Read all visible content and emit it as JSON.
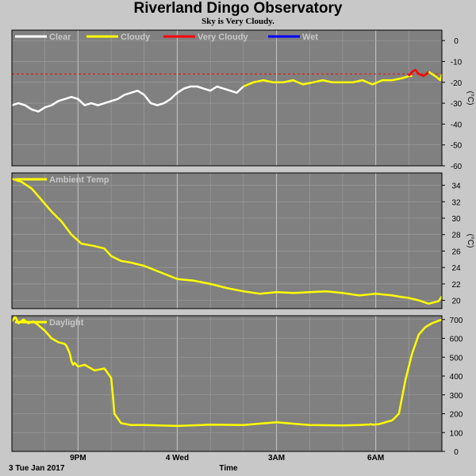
{
  "title": "Riverland Dingo Observatory",
  "subtitle": "Sky is Very Cloudy.",
  "colors": {
    "panel_bg": "#808080",
    "grid": "#a0a0a0",
    "clear": "#ffffff",
    "cloudy": "#ffff00",
    "very_cloudy": "#ff0000",
    "wet": "#0000ff"
  },
  "chart_data": [
    {
      "type": "line",
      "legend": [
        {
          "name": "Clear",
          "color": "#ffffff"
        },
        {
          "name": "Cloudy",
          "color": "#ffff00"
        },
        {
          "name": "Very Cloudy",
          "color": "#ff0000"
        },
        {
          "name": "Wet",
          "color": "#0000ff"
        }
      ],
      "ylabel": "(°C)",
      "ylim": [
        -60,
        5
      ],
      "yticks": [
        0,
        -10,
        -20,
        -30,
        -40,
        -50,
        -60
      ],
      "threshold": -16,
      "xlim": [
        0,
        13
      ],
      "series": [
        {
          "name": "Clear",
          "color": "#ffffff",
          "x": [
            0,
            0.2,
            0.4,
            0.6,
            0.8,
            1.0,
            1.2,
            1.4,
            1.6,
            1.8,
            2.0,
            2.2,
            2.4,
            2.6,
            2.8,
            3.0,
            3.2,
            3.4,
            3.6,
            3.8,
            4.0,
            4.2,
            4.4,
            4.6,
            4.8,
            5.0,
            5.2,
            5.4,
            5.6,
            5.8,
            6.0,
            6.2,
            6.4,
            6.6,
            6.8,
            7.0
          ],
          "values": [
            -31,
            -30,
            -31,
            -33,
            -34,
            -32,
            -31,
            -29,
            -28,
            -27,
            -28,
            -31,
            -30,
            -31,
            -30,
            -29,
            -28,
            -26,
            -25,
            -24,
            -26,
            -30,
            -31,
            -30,
            -28,
            -25,
            -23,
            -22,
            -22,
            -23,
            -24,
            -22,
            -23,
            -24,
            -25,
            -22
          ]
        },
        {
          "name": "Cloudy",
          "color": "#ffff00",
          "x": [
            7.0,
            7.3,
            7.6,
            7.9,
            8.2,
            8.5,
            8.8,
            9.1,
            9.4,
            9.7,
            10.0,
            10.3,
            10.6,
            10.9,
            11.2,
            11.5,
            11.8,
            12.0,
            12.1
          ],
          "values": [
            -22,
            -20,
            -19,
            -20,
            -20,
            -19,
            -21,
            -20,
            -19,
            -20,
            -20,
            -20,
            -19,
            -21,
            -19,
            -19,
            -18,
            -17,
            -17
          ]
        },
        {
          "name": "Very Cloudy",
          "color": "#ff0000",
          "x": [
            12.0,
            12.1,
            12.2,
            12.3,
            12.45,
            12.6
          ],
          "values": [
            -17,
            -15,
            -14,
            -16,
            -17,
            -15
          ]
        },
        {
          "name": "Cloudy",
          "color": "#ffff00",
          "x": [
            12.6,
            12.8,
            12.95,
            13.0
          ],
          "values": [
            -15,
            -17,
            -19,
            -16
          ]
        }
      ]
    },
    {
      "type": "line",
      "legend": [
        {
          "name": "Ambient Temp",
          "color": "#ffff00"
        }
      ],
      "ylabel": "(°C)",
      "ylim": [
        19,
        35.5
      ],
      "yticks": [
        20,
        22,
        24,
        26,
        28,
        30,
        32,
        34
      ],
      "xlim": [
        0,
        13
      ],
      "series": [
        {
          "name": "Ambient Temp",
          "color": "#ffff00",
          "x": [
            0,
            0.3,
            0.6,
            0.9,
            1.2,
            1.5,
            1.8,
            2.1,
            2.5,
            2.8,
            3.0,
            3.3,
            3.6,
            4.0,
            4.5,
            5.0,
            5.5,
            6.0,
            6.5,
            7.0,
            7.5,
            8.0,
            8.5,
            9.0,
            9.5,
            10.0,
            10.5,
            11.0,
            11.5,
            11.8,
            12.0,
            12.3,
            12.6,
            12.9,
            13.0
          ],
          "values": [
            34.8,
            34.4,
            33.6,
            32.2,
            30.8,
            29.6,
            28.0,
            26.9,
            26.6,
            26.3,
            25.4,
            24.8,
            24.6,
            24.2,
            23.4,
            22.6,
            22.4,
            22.0,
            21.5,
            21.1,
            20.8,
            21.0,
            20.9,
            21.0,
            21.1,
            20.9,
            20.6,
            20.8,
            20.6,
            20.4,
            20.3,
            20.0,
            19.6,
            19.9,
            20.5
          ]
        }
      ]
    },
    {
      "type": "line",
      "legend": [
        {
          "name": "Daylight",
          "color": "#ffff00"
        }
      ],
      "ylim": [
        0,
        720
      ],
      "yticks": [
        0,
        100,
        200,
        300,
        400,
        500,
        600,
        700
      ],
      "xlim": [
        0,
        13
      ],
      "xticks": [
        {
          "label": "9PM",
          "x": 2
        },
        {
          "label": "4 Wed",
          "x": 5
        },
        {
          "label": "3AM",
          "x": 8
        },
        {
          "label": "6AM",
          "x": 11
        }
      ],
      "xstart_label": "3 Tue Jan 2017",
      "xlabel": "Time",
      "series": [
        {
          "name": "Daylight",
          "color": "#ffff00",
          "x": [
            0,
            0.1,
            0.2,
            0.35,
            0.5,
            0.65,
            0.8,
            1.0,
            1.2,
            1.4,
            1.5,
            1.6,
            1.65,
            1.7,
            1.75,
            1.8,
            1.85,
            1.9,
            2.0,
            2.2,
            2.5,
            2.8,
            3.0,
            3.05,
            3.1,
            3.3,
            3.6,
            4.0,
            5.0,
            6.0,
            7.0,
            8.0,
            9.0,
            10.0,
            10.5,
            10.7,
            10.8,
            10.85,
            10.9,
            11.0,
            11.1,
            11.2,
            11.35,
            11.5,
            11.7,
            11.9,
            12.1,
            12.3,
            12.5,
            12.7,
            12.85,
            13.0
          ],
          "values": [
            690,
            715,
            680,
            700,
            680,
            690,
            670,
            640,
            600,
            580,
            575,
            570,
            560,
            540,
            520,
            480,
            460,
            470,
            450,
            460,
            430,
            440,
            390,
            300,
            200,
            150,
            140,
            140,
            135,
            142,
            140,
            155,
            140,
            138,
            140,
            142,
            142,
            145,
            142,
            143,
            145,
            150,
            158,
            165,
            200,
            380,
            520,
            620,
            660,
            680,
            690,
            700
          ]
        }
      ]
    }
  ]
}
